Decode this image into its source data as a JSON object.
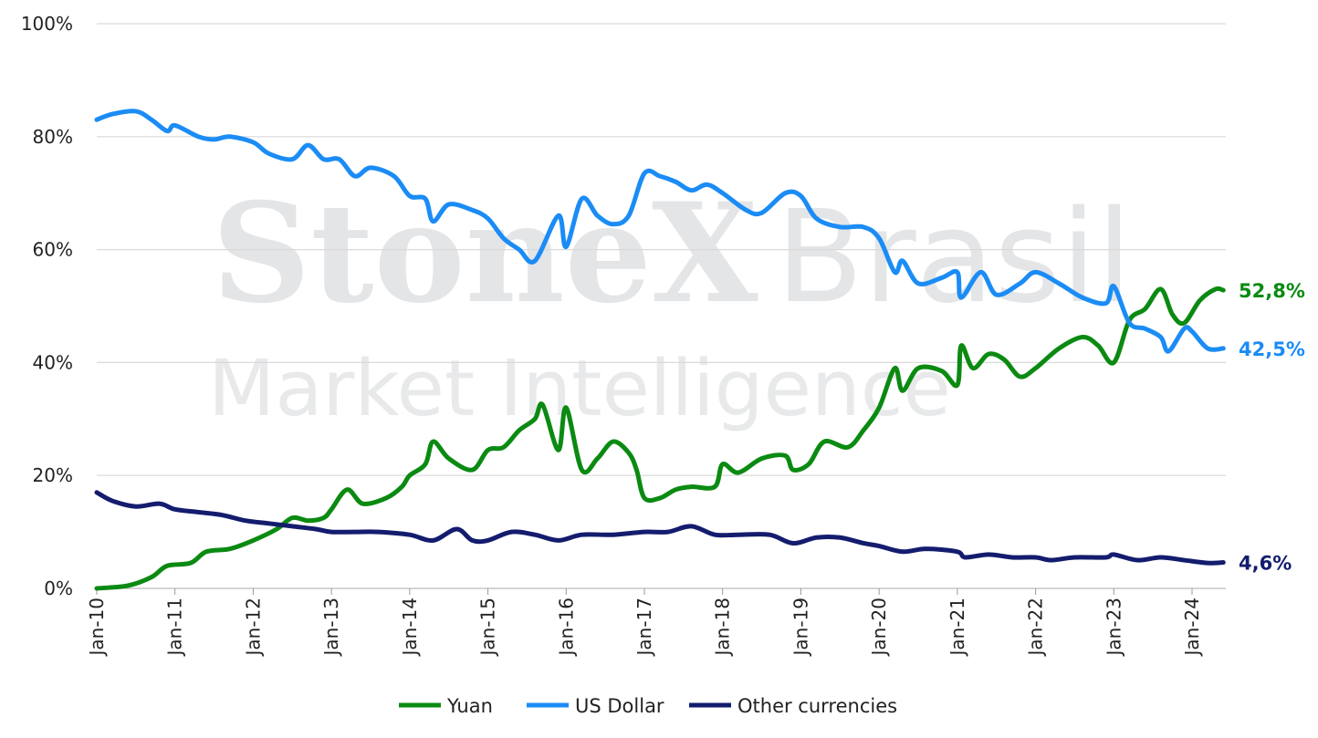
{
  "chart_data": {
    "type": "line",
    "title": "",
    "xlabel": "",
    "ylabel": "",
    "ylim": [
      0,
      100
    ],
    "xlim": [
      2010.0,
      2024.45
    ],
    "yticks": [
      0,
      20,
      40,
      60,
      80,
      100
    ],
    "ytick_labels": [
      "0%",
      "20%",
      "40%",
      "60%",
      "80%",
      "100%"
    ],
    "xtick_labels": [
      "Jan-10",
      "Jan-11",
      "Jan-12",
      "Jan-13",
      "Jan-14",
      "Jan-15",
      "Jan-16",
      "Jan-17",
      "Jan-18",
      "Jan-19",
      "Jan-20",
      "Jan-21",
      "Jan-22",
      "Jan-23",
      "Jan-24"
    ],
    "xticks": [
      2010,
      2011,
      2012,
      2013,
      2014,
      2015,
      2016,
      2017,
      2018,
      2019,
      2020,
      2021,
      2022,
      2023,
      2024
    ],
    "grid": "horizontal",
    "legend_position": "bottom-center",
    "watermark": [
      "StoneX® Brasil",
      "Market Intelligence"
    ],
    "series": [
      {
        "name": "Yuan",
        "color": "#0b8a12",
        "end_label": "52,8%",
        "x": [
          2010.0,
          2010.4,
          2010.7,
          2010.9,
          2011.2,
          2011.4,
          2011.7,
          2012.0,
          2012.3,
          2012.5,
          2012.7,
          2012.9,
          2013.0,
          2013.2,
          2013.4,
          2013.7,
          2013.9,
          2014.0,
          2014.2,
          2014.3,
          2014.5,
          2014.8,
          2015.0,
          2015.2,
          2015.4,
          2015.6,
          2015.7,
          2015.9,
          2016.0,
          2016.2,
          2016.4,
          2016.6,
          2016.8,
          2016.9,
          2017.0,
          2017.2,
          2017.4,
          2017.6,
          2017.9,
          2018.0,
          2018.2,
          2018.5,
          2018.8,
          2018.9,
          2019.1,
          2019.3,
          2019.6,
          2019.8,
          2020.0,
          2020.2,
          2020.3,
          2020.5,
          2020.8,
          2021.0,
          2021.05,
          2021.2,
          2021.4,
          2021.6,
          2021.8,
          2022.0,
          2022.3,
          2022.6,
          2022.8,
          2023.0,
          2023.2,
          2023.4,
          2023.6,
          2023.75,
          2023.9,
          2024.1,
          2024.3,
          2024.4
        ],
        "y": [
          0,
          0.5,
          2,
          4,
          4.5,
          6.5,
          7,
          8.5,
          10.5,
          12.5,
          12,
          12.5,
          14,
          17.5,
          15,
          16,
          18,
          20,
          22,
          26,
          23,
          21,
          24.5,
          25,
          28,
          30,
          32.5,
          24.5,
          32,
          21,
          23,
          26,
          24,
          21,
          16,
          16,
          17.5,
          18,
          18,
          22,
          20.5,
          23,
          23.5,
          21,
          22,
          26,
          25,
          28,
          32,
          39,
          35,
          39,
          38.5,
          36,
          43,
          39,
          41.5,
          40.5,
          37.5,
          39,
          42.5,
          44.5,
          43,
          40,
          47.5,
          49.5,
          53,
          48.5,
          47,
          51,
          53,
          52.8
        ]
      },
      {
        "name": "US Dollar",
        "color": "#1b8cf5",
        "end_label": "42,5%",
        "x": [
          2010.0,
          2010.2,
          2010.5,
          2010.7,
          2010.9,
          2011.0,
          2011.3,
          2011.5,
          2011.7,
          2012.0,
          2012.2,
          2012.5,
          2012.7,
          2012.9,
          2013.1,
          2013.3,
          2013.5,
          2013.8,
          2014.0,
          2014.2,
          2014.3,
          2014.5,
          2014.8,
          2015.0,
          2015.2,
          2015.4,
          2015.6,
          2015.9,
          2016.0,
          2016.2,
          2016.4,
          2016.6,
          2016.8,
          2017.0,
          2017.2,
          2017.4,
          2017.6,
          2017.8,
          2018.0,
          2018.3,
          2018.5,
          2018.8,
          2019.0,
          2019.2,
          2019.5,
          2019.8,
          2020.0,
          2020.2,
          2020.3,
          2020.5,
          2020.8,
          2021.0,
          2021.05,
          2021.3,
          2021.5,
          2021.8,
          2022.0,
          2022.3,
          2022.6,
          2022.9,
          2023.0,
          2023.2,
          2023.4,
          2023.6,
          2023.7,
          2023.9,
          2024.0,
          2024.2,
          2024.4
        ],
        "y": [
          83,
          84,
          84.5,
          83,
          81,
          82,
          80,
          79.5,
          80,
          79,
          77,
          76,
          78.5,
          76,
          76,
          73,
          74.5,
          73,
          69.5,
          69,
          65,
          68,
          67,
          65.5,
          62,
          60,
          58,
          66,
          60.5,
          69,
          66,
          64.5,
          66,
          73.5,
          73,
          72,
          70.5,
          71.5,
          70,
          67,
          66.5,
          70,
          69.5,
          65.5,
          64,
          64,
          62,
          56,
          58,
          54,
          55,
          56,
          51.5,
          56,
          52,
          54,
          56,
          54,
          51.5,
          50.5,
          53.5,
          47,
          46,
          44.5,
          42,
          46,
          45.5,
          42.5,
          42.5
        ]
      },
      {
        "name": "Other currencies",
        "color": "#141c6e",
        "end_label": "4,6%",
        "x": [
          2010.0,
          2010.2,
          2010.5,
          2010.8,
          2011.0,
          2011.3,
          2011.6,
          2011.9,
          2012.2,
          2012.5,
          2012.8,
          2013.0,
          2013.3,
          2013.6,
          2014.0,
          2014.3,
          2014.6,
          2014.8,
          2015.0,
          2015.3,
          2015.6,
          2015.9,
          2016.2,
          2016.6,
          2017.0,
          2017.3,
          2017.6,
          2017.9,
          2018.2,
          2018.6,
          2018.9,
          2019.2,
          2019.5,
          2019.8,
          2020.0,
          2020.3,
          2020.6,
          2021.0,
          2021.1,
          2021.4,
          2021.7,
          2022.0,
          2022.2,
          2022.5,
          2022.9,
          2023.0,
          2023.3,
          2023.6,
          2023.9,
          2024.2,
          2024.4
        ],
        "y": [
          17,
          15.5,
          14.5,
          15,
          14,
          13.5,
          13,
          12,
          11.5,
          11,
          10.5,
          10,
          10,
          10,
          9.5,
          8.5,
          10.5,
          8.5,
          8.5,
          10,
          9.5,
          8.5,
          9.5,
          9.5,
          10,
          10,
          11,
          9.5,
          9.5,
          9.5,
          8,
          9,
          9,
          8,
          7.5,
          6.5,
          7,
          6.5,
          5.5,
          6,
          5.5,
          5.5,
          5,
          5.5,
          5.5,
          6,
          5,
          5.5,
          5,
          4.5,
          4.6
        ]
      }
    ]
  }
}
